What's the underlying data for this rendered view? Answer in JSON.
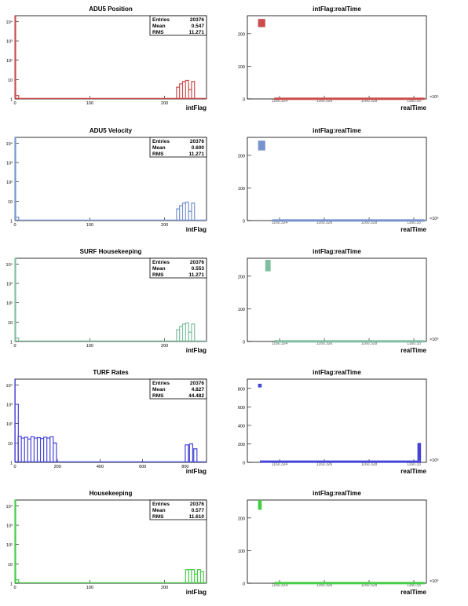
{
  "colors": {
    "frame": "#000000",
    "red": "#cc4c4c",
    "blue": "#7793cc",
    "teal": "#7fbf9f",
    "indigo": "#4444d6",
    "green": "#44cc44"
  },
  "chart_data": [
    {
      "id": "adu5-pos-hist",
      "type": "bar",
      "title": "ADU5 Position",
      "xlabel": "intFlag",
      "xlim": [
        0,
        256
      ],
      "yscale": "log",
      "ylim": [
        1,
        20000
      ],
      "xticks": [
        "0",
        "100",
        "200"
      ],
      "yticks": [
        "1",
        "10",
        "10²",
        "10³",
        "10⁴"
      ],
      "color": "red",
      "stats": [
        [
          "Entries",
          "20376"
        ],
        [
          "Mean",
          "0.547"
        ],
        [
          "RMS",
          "11.271"
        ]
      ],
      "series": [
        {
          "x": [
            0,
            1,
            216,
            220,
            224,
            228,
            232,
            236
          ],
          "values": [
            20000,
            1.5,
            4,
            6,
            8,
            9,
            3,
            8
          ]
        }
      ]
    },
    {
      "id": "adu5-pos-scatter",
      "type": "scatter",
      "title": "intFlag:realTime",
      "xlabel": "realTime",
      "ylim": [
        0,
        255
      ],
      "yticks": [
        "0",
        "100",
        "200"
      ],
      "xticks": [
        "1160.324",
        "1160.326",
        "1160.328",
        "1160.33"
      ],
      "xexponent": "×10⁶",
      "color": "red",
      "clusters": [
        [
          0.06,
          0.1,
          220,
          245
        ],
        [
          0.15,
          0.99,
          0,
          4
        ]
      ]
    },
    {
      "id": "adu5-vel-hist",
      "type": "bar",
      "title": "ADU5 Velocity",
      "xlabel": "intFlag",
      "xlim": [
        0,
        256
      ],
      "yscale": "log",
      "ylim": [
        1,
        20000
      ],
      "xticks": [
        "0",
        "100",
        "200"
      ],
      "yticks": [
        "1",
        "10",
        "10²",
        "10³",
        "10⁴"
      ],
      "color": "blue",
      "stats": [
        [
          "Entries",
          "20376"
        ],
        [
          "Mean",
          "0.600"
        ],
        [
          "RMS",
          "11.271"
        ]
      ],
      "series": [
        {
          "x": [
            0,
            1,
            216,
            220,
            224,
            228,
            232,
            236
          ],
          "values": [
            20000,
            1.5,
            4,
            6,
            8,
            9,
            3,
            8
          ]
        }
      ]
    },
    {
      "id": "adu5-vel-scatter",
      "type": "scatter",
      "title": "intFlag:realTime",
      "xlabel": "realTime",
      "ylim": [
        0,
        255
      ],
      "yticks": [
        "0",
        "100",
        "200"
      ],
      "xticks": [
        "1160.324",
        "1160.326",
        "1160.328",
        "1160.33"
      ],
      "xexponent": "×10⁶",
      "color": "blue",
      "clusters": [
        [
          0.06,
          0.1,
          215,
          245
        ],
        [
          0.14,
          0.99,
          0,
          4
        ]
      ]
    },
    {
      "id": "surf-hist",
      "type": "bar",
      "title": "SURF Housekeeping",
      "xlabel": "intFlag",
      "xlim": [
        0,
        256
      ],
      "yscale": "log",
      "ylim": [
        1,
        20000
      ],
      "xticks": [
        "0",
        "100",
        "200"
      ],
      "yticks": [
        "1",
        "10",
        "10²",
        "10³",
        "10⁴"
      ],
      "color": "teal",
      "stats": [
        [
          "Entries",
          "20376"
        ],
        [
          "Mean",
          "0.553"
        ],
        [
          "RMS",
          "11.271"
        ]
      ],
      "series": [
        {
          "x": [
            0,
            1,
            216,
            220,
            224,
            228,
            232,
            236
          ],
          "values": [
            20000,
            1.5,
            4,
            6,
            8,
            9,
            3,
            8
          ]
        }
      ]
    },
    {
      "id": "surf-scatter",
      "type": "scatter",
      "title": "intFlag:realTime",
      "xlabel": "realTime",
      "ylim": [
        0,
        255
      ],
      "yticks": [
        "0",
        "100",
        "200"
      ],
      "xticks": [
        "1160.324",
        "1160.326",
        "1160.328",
        "1160.33"
      ],
      "xexponent": "×10⁶",
      "color": "teal",
      "clusters": [
        [
          0.1,
          0.13,
          215,
          250
        ],
        [
          0.15,
          0.99,
          0,
          4
        ]
      ]
    },
    {
      "id": "turf-hist",
      "type": "bar",
      "title": "TURF Rates",
      "xlabel": "intFlag",
      "xlim": [
        0,
        900
      ],
      "yscale": "log",
      "ylim": [
        1,
        20000
      ],
      "xticks": [
        "0",
        "200",
        "400",
        "600",
        "800"
      ],
      "yticks": [
        "1",
        "10",
        "10²",
        "10³",
        "10⁴"
      ],
      "color": "indigo",
      "stats": [
        [
          "Entries",
          "20376"
        ],
        [
          "Mean",
          "4.827"
        ],
        [
          "RMS",
          "44.482"
        ]
      ],
      "series": [
        {
          "x": [
            0,
            1,
            15,
            30,
            45,
            60,
            75,
            90,
            105,
            120,
            135,
            150,
            165,
            180,
            800,
            820,
            840
          ],
          "values": [
            20000,
            1000,
            22,
            18,
            20,
            16,
            21,
            18,
            19,
            17,
            20,
            18,
            21,
            10,
            8,
            9,
            5
          ]
        }
      ]
    },
    {
      "id": "turf-scatter",
      "type": "scatter",
      "title": "intFlag:realTime",
      "xlabel": "realTime",
      "ylim": [
        0,
        900
      ],
      "yticks": [
        "0",
        "200",
        "400",
        "600",
        "800"
      ],
      "xticks": [
        "1160.324",
        "1160.326",
        "1160.328",
        "1160.33"
      ],
      "xexponent": "×10⁶",
      "color": "indigo",
      "clusters": [
        [
          0.06,
          0.08,
          810,
          850
        ],
        [
          0.07,
          0.97,
          0,
          20
        ],
        [
          0.95,
          0.97,
          20,
          210
        ]
      ]
    },
    {
      "id": "hk-hist",
      "type": "bar",
      "title": "Housekeeping",
      "xlabel": "intFlag",
      "xlim": [
        0,
        256
      ],
      "yscale": "log",
      "ylim": [
        1,
        20000
      ],
      "xticks": [
        "0",
        "100",
        "200"
      ],
      "yticks": [
        "1",
        "10",
        "10²",
        "10³",
        "10⁴"
      ],
      "color": "green",
      "stats": [
        [
          "Entries",
          "20376"
        ],
        [
          "Mean",
          "0.577"
        ],
        [
          "RMS",
          "11.610"
        ]
      ],
      "series": [
        {
          "x": [
            0,
            1,
            228,
            232,
            236,
            240,
            244,
            248
          ],
          "values": [
            20000,
            1.5,
            5,
            5,
            5,
            3,
            5,
            4
          ]
        }
      ]
    },
    {
      "id": "hk-scatter",
      "type": "scatter",
      "title": "intFlag:realTime",
      "xlabel": "realTime",
      "ylim": [
        0,
        255
      ],
      "yticks": [
        "0",
        "100",
        "200"
      ],
      "xticks": [
        "1160.324",
        "1160.326",
        "1160.328",
        "1160.33"
      ],
      "xexponent": "×10⁶",
      "color": "green",
      "clusters": [
        [
          0.06,
          0.08,
          225,
          255
        ],
        [
          0.15,
          0.99,
          0,
          4
        ]
      ]
    }
  ]
}
